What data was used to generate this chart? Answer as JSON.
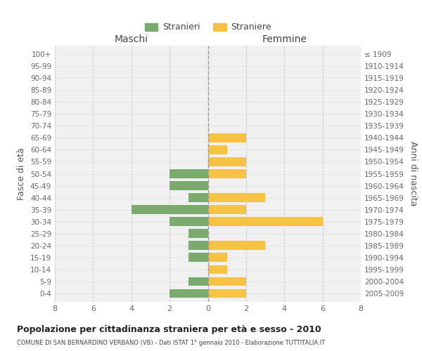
{
  "age_groups": [
    "100+",
    "95-99",
    "90-94",
    "85-89",
    "80-84",
    "75-79",
    "70-74",
    "65-69",
    "60-64",
    "55-59",
    "50-54",
    "45-49",
    "40-44",
    "35-39",
    "30-34",
    "25-29",
    "20-24",
    "15-19",
    "10-14",
    "5-9",
    "0-4"
  ],
  "birth_years": [
    "≤ 1909",
    "1910-1914",
    "1915-1919",
    "1920-1924",
    "1925-1929",
    "1930-1934",
    "1935-1939",
    "1940-1944",
    "1945-1949",
    "1950-1954",
    "1955-1959",
    "1960-1964",
    "1965-1969",
    "1970-1974",
    "1975-1979",
    "1980-1984",
    "1985-1989",
    "1990-1994",
    "1995-1999",
    "2000-2004",
    "2005-2009"
  ],
  "males": [
    0,
    0,
    0,
    0,
    0,
    0,
    0,
    0,
    0,
    0,
    2,
    2,
    1,
    4,
    2,
    1,
    1,
    1,
    0,
    1,
    2
  ],
  "females": [
    0,
    0,
    0,
    0,
    0,
    0,
    0,
    2,
    1,
    2,
    2,
    0,
    3,
    2,
    6,
    0,
    3,
    1,
    1,
    2,
    2
  ],
  "male_color": "#7aaa6d",
  "female_color": "#f5c242",
  "male_label": "Stranieri",
  "female_label": "Straniere",
  "title": "Popolazione per cittadinanza straniera per età e sesso - 2010",
  "subtitle": "COMUNE DI SAN BERNARDINO VERBANO (VB) - Dati ISTAT 1° gennaio 2010 - Elaborazione TUTTITALIA.IT",
  "ylabel_left": "Fasce di età",
  "ylabel_right": "Anni di nascita",
  "xlabel_left": "Maschi",
  "xlabel_right": "Femmine",
  "xlim": 8,
  "bg_color": "#f0f0f0",
  "grid_color": "#cccccc",
  "bar_height": 0.75
}
